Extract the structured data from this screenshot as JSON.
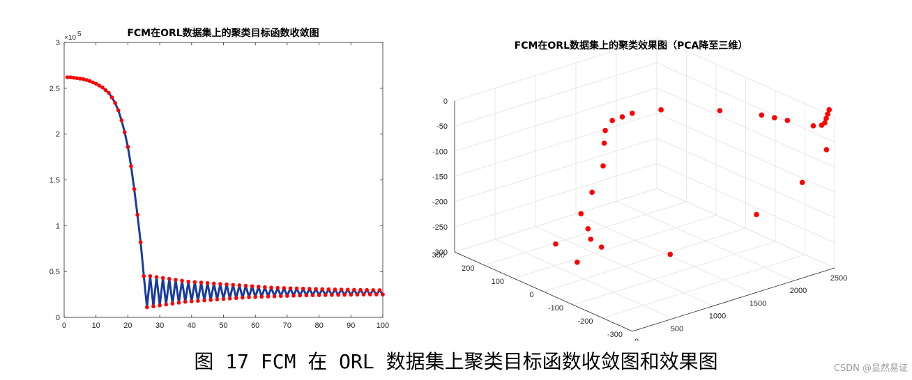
{
  "chart_data": [
    {
      "type": "line",
      "title": "FCM在ORL数据集上的聚类目标函数收敛图",
      "xlabel": "",
      "ylabel": "",
      "y_exponent": "×10",
      "y_exponent_power": "5",
      "xlim": [
        0,
        100
      ],
      "ylim": [
        0,
        3
      ],
      "xticks": [
        "0",
        "10",
        "20",
        "30",
        "40",
        "50",
        "60",
        "70",
        "80",
        "90",
        "100"
      ],
      "yticks": [
        "0",
        "0.5",
        "1",
        "1.5",
        "2",
        "2.5",
        "3"
      ],
      "grid": false,
      "line_color": "#1a3a9c",
      "marker_color": "#ff0000",
      "series": [
        {
          "x": [
            1,
            2,
            3,
            4,
            5,
            6,
            7,
            8,
            9,
            10,
            11,
            12,
            13,
            14,
            15,
            16,
            17,
            18,
            19,
            20,
            21,
            22,
            23,
            24,
            25,
            26,
            27,
            28,
            29,
            30,
            31,
            32,
            33,
            34,
            35,
            36,
            37,
            38,
            39,
            40,
            41,
            42,
            43,
            44,
            45,
            46,
            47,
            48,
            49,
            50,
            51,
            52,
            53,
            54,
            55,
            56,
            57,
            58,
            59,
            60,
            61,
            62,
            63,
            64,
            65,
            66,
            67,
            68,
            69,
            70,
            71,
            72,
            73,
            74,
            75,
            76,
            77,
            78,
            79,
            80,
            81,
            82,
            83,
            84,
            85,
            86,
            87,
            88,
            89,
            90,
            91,
            92,
            93,
            94,
            95,
            96,
            97,
            98,
            99,
            100
          ],
          "y": [
            2.62,
            2.62,
            2.615,
            2.61,
            2.605,
            2.6,
            2.59,
            2.58,
            2.565,
            2.55,
            2.53,
            2.51,
            2.48,
            2.45,
            2.4,
            2.34,
            2.26,
            2.15,
            2.02,
            1.86,
            1.65,
            1.4,
            1.12,
            0.82,
            0.45,
            0.11,
            0.45,
            0.12,
            0.44,
            0.13,
            0.43,
            0.14,
            0.42,
            0.15,
            0.41,
            0.16,
            0.4,
            0.17,
            0.39,
            0.175,
            0.385,
            0.18,
            0.38,
            0.185,
            0.375,
            0.19,
            0.37,
            0.195,
            0.365,
            0.2,
            0.36,
            0.205,
            0.355,
            0.21,
            0.35,
            0.215,
            0.345,
            0.22,
            0.34,
            0.222,
            0.335,
            0.225,
            0.33,
            0.228,
            0.325,
            0.23,
            0.322,
            0.232,
            0.32,
            0.234,
            0.318,
            0.236,
            0.316,
            0.238,
            0.314,
            0.24,
            0.312,
            0.241,
            0.31,
            0.242,
            0.308,
            0.243,
            0.306,
            0.244,
            0.304,
            0.245,
            0.303,
            0.246,
            0.302,
            0.247,
            0.301,
            0.248,
            0.3,
            0.249,
            0.299,
            0.25,
            0.298,
            0.25,
            0.297,
            0.25
          ]
        }
      ]
    },
    {
      "type": "scatter",
      "title": "FCM在ORL数据集上的聚类效果图（PCA降至三维）",
      "xlabel": "",
      "ylabel": "",
      "zlabel": "",
      "xlim": [
        0,
        2500
      ],
      "ylim": [
        -300,
        300
      ],
      "zlim": [
        -300,
        0
      ],
      "xticks": [
        "0",
        "500",
        "1000",
        "1500",
        "2000",
        "2500"
      ],
      "yticks": [
        "-300",
        "-200",
        "-100",
        "0",
        "100",
        "200",
        "300"
      ],
      "zticks": [
        "-300",
        "-250",
        "-200",
        "-150",
        "-100",
        "-50",
        "0"
      ],
      "grid": true,
      "marker_color": "#ff0000",
      "points": [
        {
          "x": 2250,
          "y": -350,
          "z": 40
        },
        {
          "x": 2250,
          "y": -345,
          "z": 30
        },
        {
          "x": 2250,
          "y": -340,
          "z": 20
        },
        {
          "x": 2250,
          "y": -335,
          "z": 10
        },
        {
          "x": 2230,
          "y": -330,
          "z": 5
        },
        {
          "x": 2200,
          "y": -310,
          "z": 0
        },
        {
          "x": 2100,
          "y": -250,
          "z": 0
        },
        {
          "x": 2050,
          "y": -220,
          "z": 0
        },
        {
          "x": 2000,
          "y": -190,
          "z": 0
        },
        {
          "x": 1850,
          "y": -90,
          "z": -10
        },
        {
          "x": 1600,
          "y": 40,
          "z": -30
        },
        {
          "x": 1500,
          "y": 110,
          "z": -50
        },
        {
          "x": 1450,
          "y": 130,
          "z": -60
        },
        {
          "x": 1400,
          "y": 150,
          "z": -70
        },
        {
          "x": 1350,
          "y": 160,
          "z": -90
        },
        {
          "x": 1300,
          "y": 150,
          "z": -110
        },
        {
          "x": 1250,
          "y": 140,
          "z": -150
        },
        {
          "x": 1150,
          "y": 150,
          "z": -200
        },
        {
          "x": 1050,
          "y": 160,
          "z": -240
        },
        {
          "x": 2400,
          "y": -300,
          "z": -60
        },
        {
          "x": 2100,
          "y": -300,
          "z": -110
        },
        {
          "x": 1900,
          "y": -200,
          "z": -190
        },
        {
          "x": 1200,
          "y": -100,
          "z": -260
        },
        {
          "x": 900,
          "y": 50,
          "z": -270
        },
        {
          "x": 950,
          "y": 100,
          "z": -270
        },
        {
          "x": 1100,
          "y": 150,
          "z": -270
        },
        {
          "x": 700,
          "y": 150,
          "z": -280
        },
        {
          "x": 600,
          "y": 50,
          "z": -285
        }
      ]
    }
  ],
  "caption": "图 17 FCM 在 ORL 数据集上聚类目标函数收敛图和效果图",
  "watermark": "CSDN @显然易证"
}
